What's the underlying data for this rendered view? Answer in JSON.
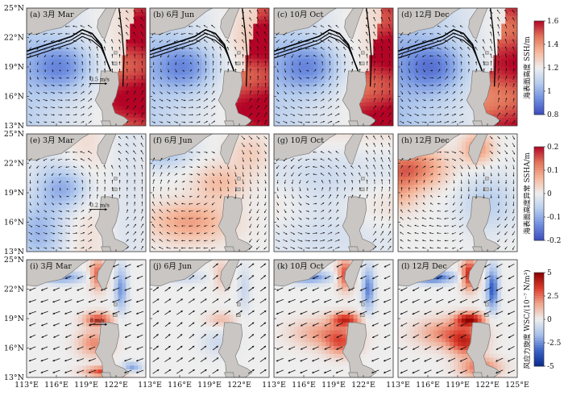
{
  "chart_data": {
    "type": "heatmap",
    "title": "",
    "lat_ticks": [
      "25°N",
      "22°N",
      "19°N",
      "16°N",
      "13°N"
    ],
    "lon_ticks": [
      "113°E",
      "116°E",
      "119°E",
      "122°E",
      "125°E"
    ],
    "lon_ticks_no_last": [
      "113°E",
      "116°E",
      "119°E",
      "122°E"
    ],
    "xlim": [
      113,
      125
    ],
    "ylim": [
      13,
      25
    ],
    "rows": [
      {
        "id": "ssh",
        "cmap": [
          "#3b4cc0",
          "#6f8fe0",
          "#b6cdee",
          "#eeeeee",
          "#f6b79b",
          "#e27459",
          "#b40426"
        ],
        "panels": [
          {
            "label": "(a) 3月 Mar",
            "scale": "0.5 m/s"
          },
          {
            "label": "(b) 6月 Jun",
            "scale": ""
          },
          {
            "label": "(c) 10月 Oct",
            "scale": ""
          },
          {
            "label": "(d) 12月 Dec",
            "scale": ""
          }
        ],
        "cbar": {
          "label": "海表面高度 SSH/m",
          "vmin": 0.8,
          "vmax": 1.6,
          "ticks": [
            "1.6",
            "1.4",
            "1.2",
            "1",
            "0.8"
          ]
        }
      },
      {
        "id": "ssha",
        "cmap": [
          "#3b4cc0",
          "#6f8fe0",
          "#b6cdee",
          "#eeeeee",
          "#f6b79b",
          "#e27459",
          "#b40426"
        ],
        "panels": [
          {
            "label": "(e) 3月 Mar",
            "scale": "0.2 m/s"
          },
          {
            "label": "(f) 6月 Jun",
            "scale": ""
          },
          {
            "label": "(g) 10月 Oct",
            "scale": ""
          },
          {
            "label": "(h) 12月 Dec",
            "scale": ""
          }
        ],
        "cbar": {
          "label": "海表面高度异常 SSHA/m",
          "vmin": -0.2,
          "vmax": 0.2,
          "ticks": [
            "0.2",
            "0.1",
            "0",
            "-0.1",
            "-0.2"
          ]
        }
      },
      {
        "id": "wsc",
        "cmap": [
          "#0a2a8c",
          "#3a63c8",
          "#a7c0ea",
          "#eeeeee",
          "#f0a58c",
          "#dc3b2b",
          "#8b0000"
        ],
        "panels": [
          {
            "label": "(i) 3月 Mar",
            "scale": "8 m/s"
          },
          {
            "label": "(j) 6月 Jun",
            "scale": ""
          },
          {
            "label": "(k) 10月 Oct",
            "scale": ""
          },
          {
            "label": "(l) 12月 Dec",
            "scale": ""
          }
        ],
        "cbar": {
          "label": "风应力旋度 WSC/(10⁻⁷ N/m³)",
          "vmin": -5,
          "vmax": 5,
          "ticks": [
            "5",
            "2.5",
            "0",
            "-2.5",
            "-5"
          ]
        }
      }
    ]
  }
}
